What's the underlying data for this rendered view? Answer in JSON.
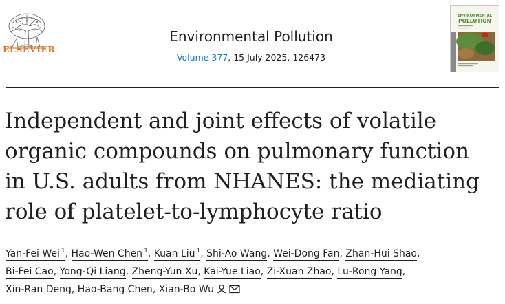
{
  "publisher": {
    "name": "ELSEVIER"
  },
  "journal": {
    "title": "Environmental Pollution",
    "volume_link": "Volume 377",
    "date_and_id": ", 15 July 2025, 126473"
  },
  "cover": {
    "title_line1": "ENVIRONMENTAL",
    "title_line2": "POLLUTION"
  },
  "article": {
    "title_lines": [
      "Independent and joint effects of volatile",
      "organic compounds on pulmonary function",
      "in U.S. adults from NHANES: the mediating",
      "role of platelet-to-lymphocyte ratio"
    ]
  },
  "authors": [
    {
      "name": "Yan-Fei Wei",
      "sup": "1"
    },
    {
      "name": "Hao-Wen Chen",
      "sup": "1"
    },
    {
      "name": "Kuan Liu",
      "sup": "1"
    },
    {
      "name": "Shi-Ao Wang",
      "sup": ""
    },
    {
      "name": "Wei-Dong Fan",
      "sup": ""
    },
    {
      "name": "Zhan-Hui Shao",
      "sup": ""
    },
    {
      "name": "Bi-Fei Cao",
      "sup": ""
    },
    {
      "name": "Yong-Qi Liang",
      "sup": ""
    },
    {
      "name": "Zheng-Yun Xu",
      "sup": ""
    },
    {
      "name": "Kai-Yue Liao",
      "sup": ""
    },
    {
      "name": "Zi-Xuan Zhao",
      "sup": ""
    },
    {
      "name": "Lu-Rong Yang",
      "sup": ""
    },
    {
      "name": "Xin-Ran Deng",
      "sup": ""
    },
    {
      "name": "Hao-Bang Chen",
      "sup": ""
    },
    {
      "name": "Xian-Bo Wu",
      "sup": ""
    }
  ],
  "colors": {
    "link": "#0c7dbb",
    "publisher_orange": "#e9711c",
    "cover_green": "#4e8a2e",
    "cover_red": "#c4281c"
  }
}
